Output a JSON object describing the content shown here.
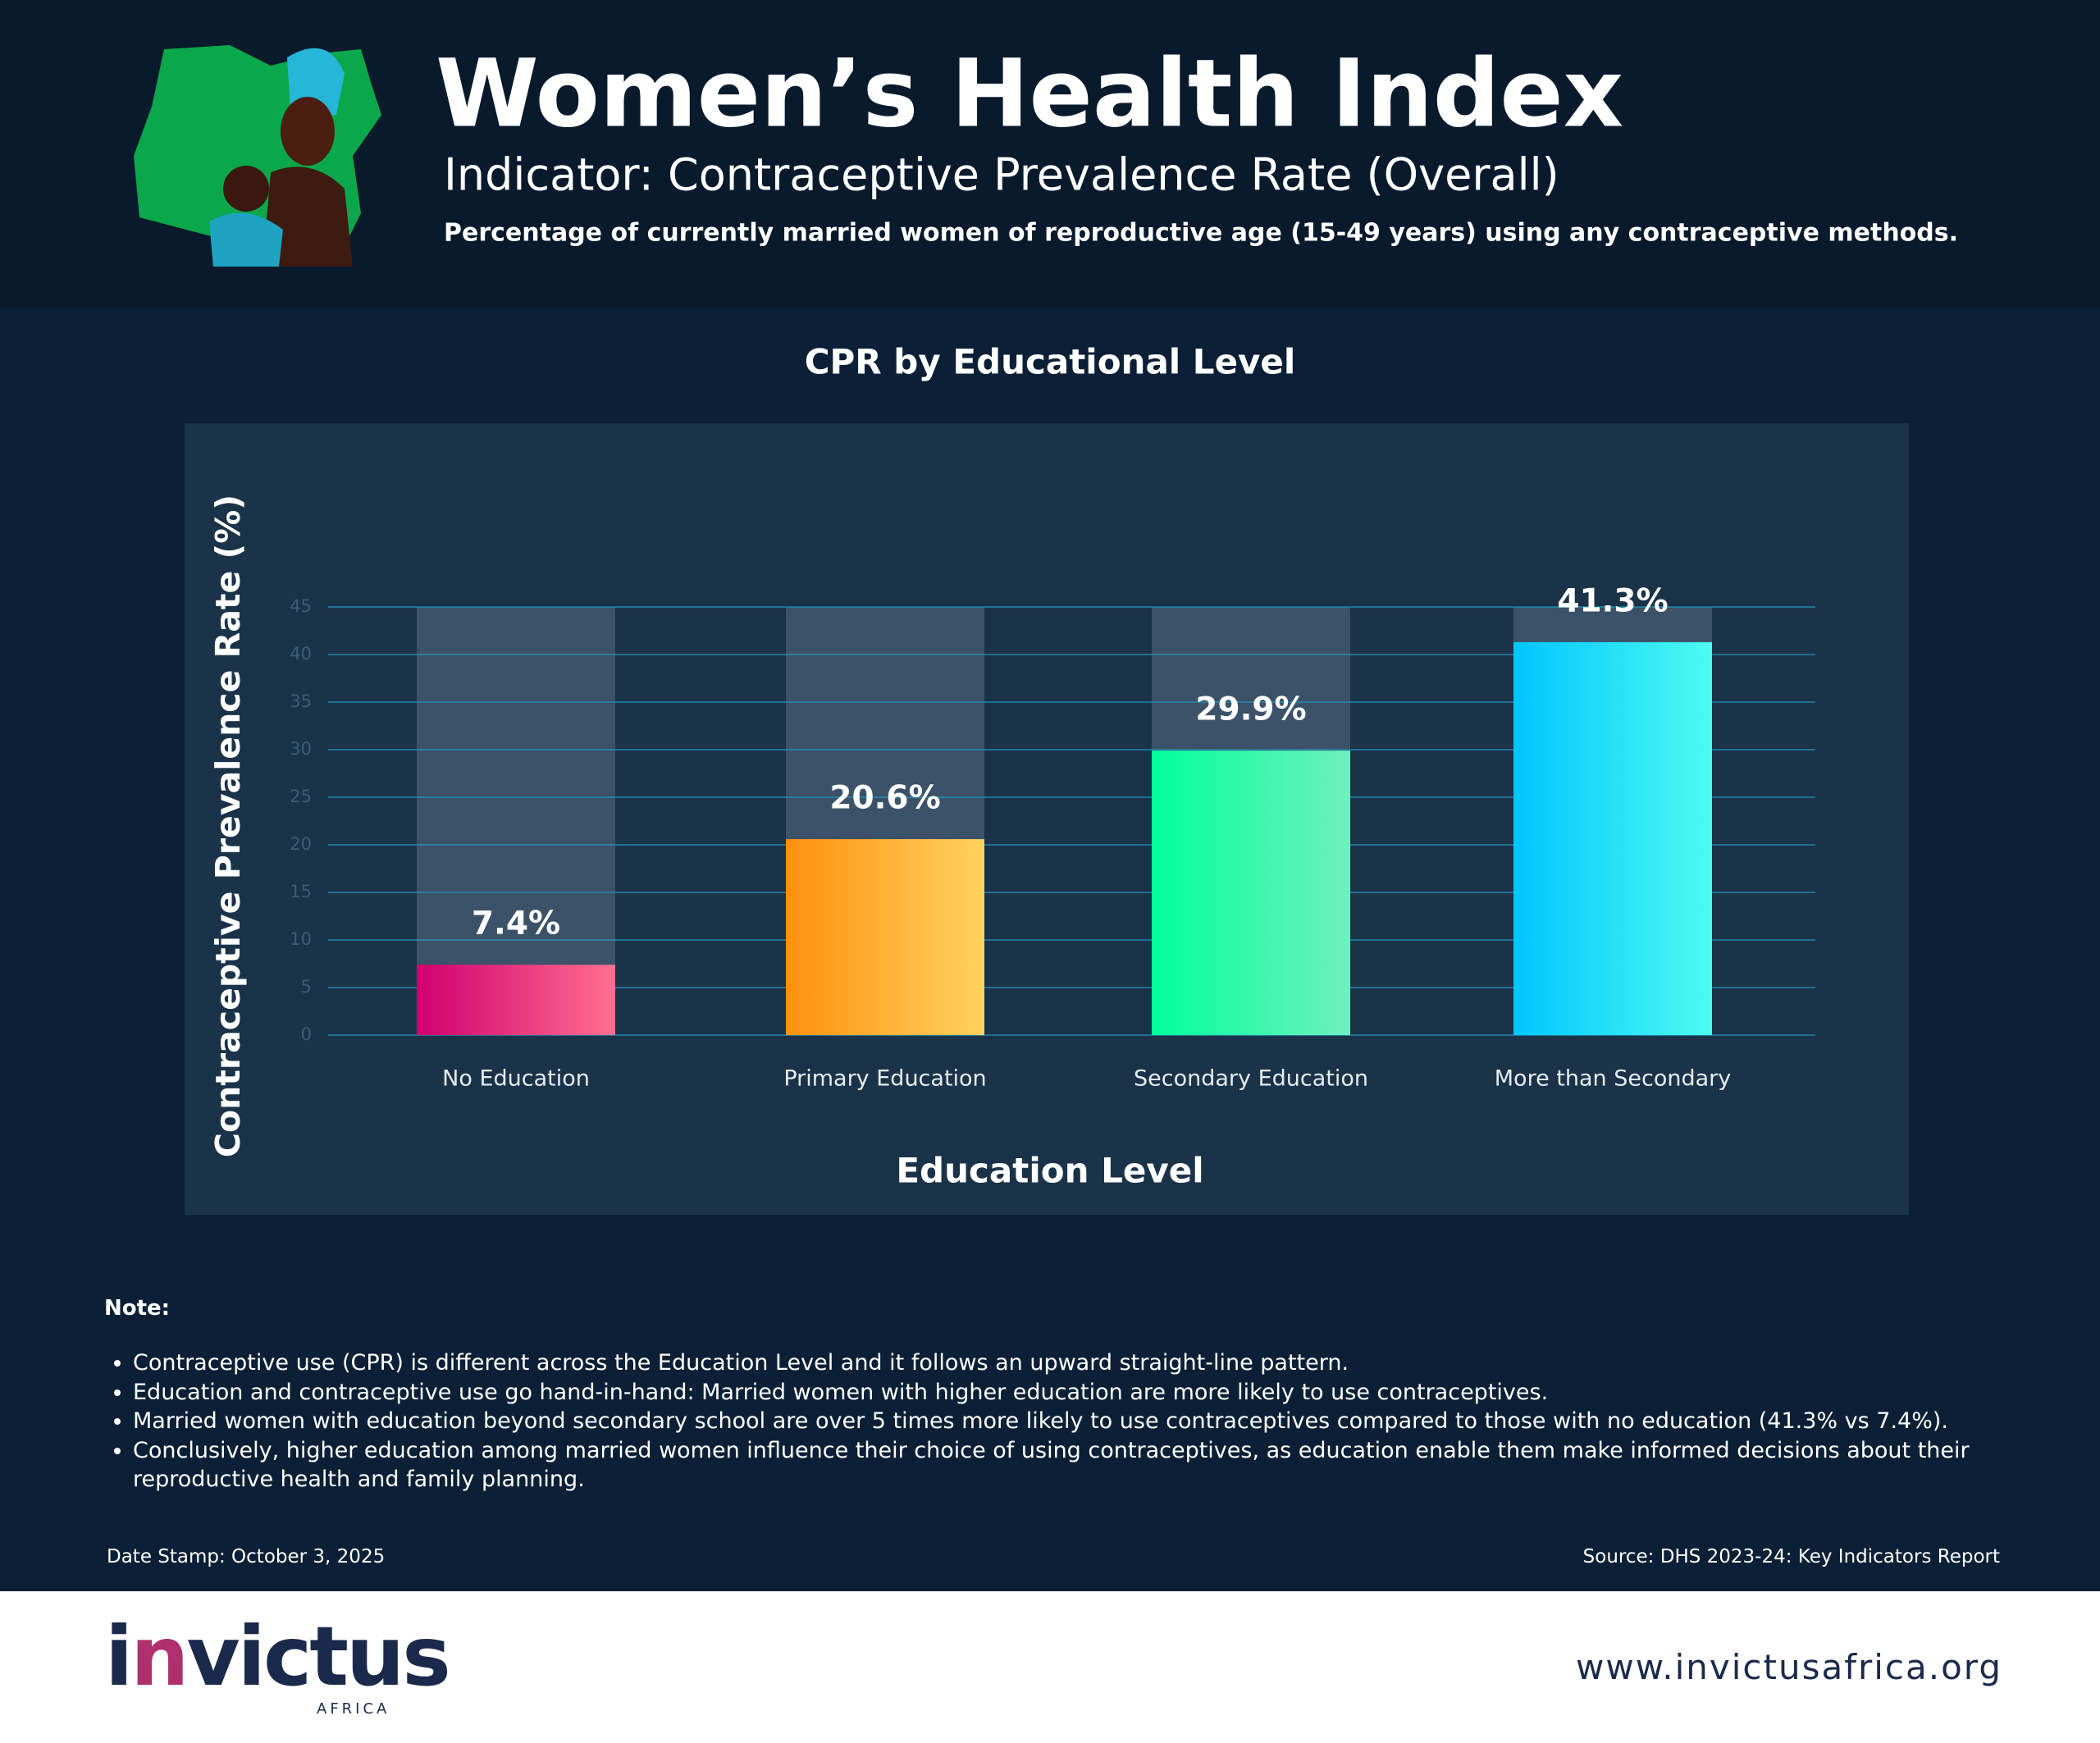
{
  "header": {
    "title": "Women’s Health Index",
    "subtitle": "Indicator: Contraceptive Prevalence Rate (Overall)",
    "description": "Percentage of currently married women of reproductive age (15-49 years) using any contraceptive methods."
  },
  "chart_data": {
    "type": "bar",
    "title": "CPR by Educational Level",
    "x_label": "Education Level",
    "y_label": "Contraceptive Prevalence Rate (%)",
    "categories": [
      "No Education",
      "Primary Education",
      "Secondary Education",
      "More than Secondary"
    ],
    "values": [
      7.4,
      20.6,
      29.9,
      41.3
    ],
    "value_labels": [
      "7.4%",
      "20.6%",
      "29.9%",
      "41.3%"
    ],
    "colors": [
      [
        "#d0006f",
        "#ff6f91"
      ],
      [
        "#ff9010",
        "#ffd25e"
      ],
      [
        "#00ff9c",
        "#6ef0bf"
      ],
      [
        "#00c6ff",
        "#4dfbf0"
      ]
    ],
    "ylim": [
      0,
      45
    ],
    "yticks": [
      0,
      5,
      10,
      15,
      20,
      25,
      30,
      35,
      40,
      45
    ],
    "grid": true
  },
  "notes": {
    "heading": "Note:",
    "items": [
      "Contraceptive use (CPR) is different across the Education Level and it follows an upward straight-line pattern.",
      "Education and contraceptive use go hand-in-hand: Married women with higher education are more likely to use contraceptives.",
      "Married women with education beyond secondary school are over 5 times more likely to use contraceptives compared to those with no education (41.3% vs 7.4%).",
      "Conclusively, higher education among married women influence their choice of using contraceptives, as education enable them make informed decisions about their reproductive health and family planning."
    ]
  },
  "footer": {
    "date_stamp": "Date Stamp: October 3, 2025",
    "source": "Source: DHS 2023-24: Key Indicators Report",
    "logo": "invictus",
    "tagline": "AFRICA",
    "website": "www.invictusafrica.org"
  }
}
